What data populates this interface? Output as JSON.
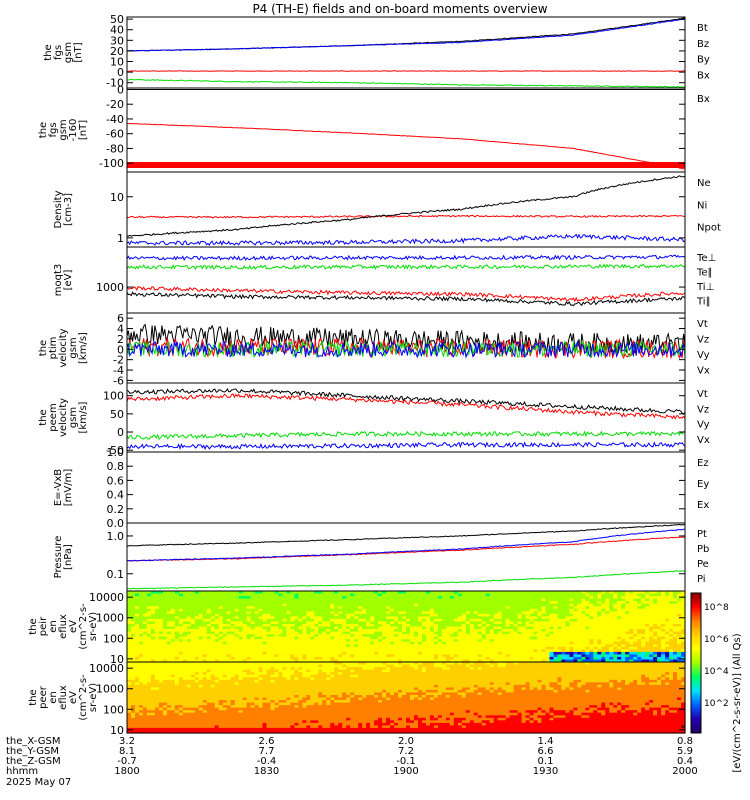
{
  "title": "P4 (TH-E) fields and on-board moments overview",
  "chart_data": [
    {
      "type": "line",
      "ylabel": [
        "the",
        "fgs",
        "gsm",
        "[nT]"
      ],
      "ylim": [
        -15,
        52
      ],
      "yticks": [
        "50",
        "40",
        "30",
        "20",
        "10",
        "0",
        "-10"
      ],
      "ytick_values": [
        50,
        40,
        30,
        20,
        10,
        0,
        -10
      ],
      "x": [
        0,
        0.2,
        0.4,
        0.6,
        0.8,
        1.0
      ],
      "series": [
        {
          "name": "Bt",
          "color": "#000000",
          "values": [
            20,
            22,
            25,
            29,
            36,
            51
          ],
          "noise": 0.3
        },
        {
          "name": "Bz",
          "color": "#ff0000",
          "values": [
            1,
            1,
            1,
            1,
            1,
            1
          ],
          "noise": 0.2
        },
        {
          "name": "By",
          "color": "#00dd00",
          "values": [
            -7,
            -9,
            -10,
            -12,
            -13,
            -14
          ],
          "noise": 0.4
        },
        {
          "name": "Bx",
          "color": "#0000ff",
          "values": [
            20,
            22,
            25,
            28,
            35,
            50
          ],
          "noise": 0.3
        }
      ]
    },
    {
      "type": "line",
      "ylabel": [
        "the",
        "fgs",
        "gsm",
        "-160",
        "[nT]"
      ],
      "ylim": [
        -112,
        2
      ],
      "yticks": [
        "0",
        "-20",
        "-40",
        "-60",
        "-80",
        "-100"
      ],
      "ytick_values": [
        0,
        -20,
        -40,
        -60,
        -80,
        -100
      ],
      "x": [
        0,
        0.2,
        0.4,
        0.6,
        0.8,
        1.0
      ],
      "series": [
        {
          "name": "Bx",
          "color": "#000000",
          "values": [
            0,
            0,
            0,
            0,
            0,
            0
          ],
          "noise": 0.0
        },
        {
          "name": "",
          "color": "#ff0000",
          "values": [
            -46,
            -52,
            -59,
            -67,
            -80,
            -108
          ],
          "noise": 0.3
        }
      ]
    },
    {
      "type": "line",
      "ylog": true,
      "ylabel": [
        "Density",
        "[cm-3]"
      ],
      "ylim": [
        0.6,
        40
      ],
      "yticks": [
        "10",
        "1"
      ],
      "ytick_values": [
        10,
        1
      ],
      "x": [
        0,
        0.2,
        0.4,
        0.6,
        0.8,
        1.0
      ],
      "series": [
        {
          "name": "Ne",
          "color": "#ff0000",
          "values": [
            3.2,
            3.2,
            3.3,
            3.4,
            3.3,
            3.4
          ],
          "noise": 0.02
        },
        {
          "name": "Ni",
          "color": "#000000",
          "values": [
            1.1,
            1.6,
            2.8,
            5,
            10,
            32
          ],
          "noise": 0.02
        },
        {
          "name": "Npot",
          "color": "#0000ff",
          "values": [
            0.75,
            0.75,
            0.78,
            0.85,
            1.1,
            0.9
          ],
          "noise": 0.05
        }
      ]
    },
    {
      "type": "line",
      "ylog": true,
      "ylabel": [
        "moqt3",
        "[eV]"
      ],
      "ylim": [
        200,
        12000
      ],
      "yticks": [
        "1000"
      ],
      "ytick_values": [
        1000
      ],
      "x": [
        0,
        0.2,
        0.4,
        0.6,
        0.8,
        1.0
      ],
      "series": [
        {
          "name": "Te⊥",
          "color": "#0000ff",
          "values": [
            6000,
            6000,
            6200,
            6200,
            6300,
            6500
          ],
          "noise": 0.05
        },
        {
          "name": "Te∥",
          "color": "#00dd00",
          "values": [
            3500,
            3400,
            3500,
            3500,
            3600,
            3700
          ],
          "noise": 0.05
        },
        {
          "name": "Ti⊥",
          "color": "#ff0000",
          "values": [
            950,
            800,
            700,
            650,
            450,
            700
          ],
          "noise": 0.05
        },
        {
          "name": "Ti∥",
          "color": "#000000",
          "values": [
            650,
            550,
            520,
            480,
            350,
            500
          ],
          "noise": 0.05
        }
      ]
    },
    {
      "type": "line",
      "ylabel": [
        "the",
        "ptim",
        "velocity",
        "gsm",
        "[km/s]"
      ],
      "ylim": [
        -6.5,
        7
      ],
      "yticks": [
        "6",
        "4",
        "2",
        "0",
        "-2",
        "-4",
        "-6"
      ],
      "ytick_values": [
        6,
        4,
        2,
        0,
        -2,
        -4,
        -6
      ],
      "x": [
        0,
        0.2,
        0.4,
        0.6,
        0.8,
        1.0
      ],
      "series": [
        {
          "name": "Vt",
          "color": "#000000",
          "values": [
            3,
            2.5,
            2,
            1.6,
            1.2,
            1
          ],
          "noise": 2.0
        },
        {
          "name": "Vz",
          "color": "#ff0000",
          "values": [
            0.5,
            0.4,
            0.3,
            0.2,
            0.1,
            0.1
          ],
          "noise": 1.8
        },
        {
          "name": "Vy",
          "color": "#00dd00",
          "values": [
            0,
            0,
            0,
            0,
            0,
            0
          ],
          "noise": 1.5
        },
        {
          "name": "Vx",
          "color": "#0000ff",
          "values": [
            0,
            0,
            0,
            0,
            0,
            0
          ],
          "noise": 1.5
        }
      ]
    },
    {
      "type": "line",
      "ylabel": [
        "the",
        "peem",
        "velocity",
        "gsm",
        "[km/s]"
      ],
      "ylim": [
        -55,
        135
      ],
      "yticks": [
        "100",
        "50",
        "0",
        "-50"
      ],
      "ytick_values": [
        100,
        50,
        0,
        -50
      ],
      "x": [
        0,
        0.2,
        0.4,
        0.6,
        0.8,
        1.0
      ],
      "series": [
        {
          "name": "Vt",
          "color": "#000000",
          "values": [
            110,
            115,
            100,
            85,
            70,
            55
          ],
          "noise": 6
        },
        {
          "name": "Vz",
          "color": "#ff0000",
          "values": [
            90,
            100,
            90,
            75,
            55,
            40
          ],
          "noise": 6
        },
        {
          "name": "Vy",
          "color": "#00dd00",
          "values": [
            -15,
            -10,
            -5,
            -5,
            -5,
            -5
          ],
          "noise": 6
        },
        {
          "name": "Vx",
          "color": "#0000ff",
          "values": [
            -40,
            -40,
            -38,
            -35,
            -35,
            -35
          ],
          "noise": 6
        }
      ]
    },
    {
      "type": "line",
      "ylabel": [
        "E=-VxB",
        "[mV/m]"
      ],
      "ylim": [
        0,
        1
      ],
      "yticks": [
        "1.0",
        "0.8",
        "0.6",
        "0.4",
        "0.2",
        "0.0"
      ],
      "ytick_values": [
        1.0,
        0.8,
        0.6,
        0.4,
        0.2,
        0.0
      ],
      "x": [],
      "series": [
        {
          "name": "Ez",
          "color": "#ff0000",
          "values": []
        },
        {
          "name": "Ey",
          "color": "#00dd00",
          "values": []
        },
        {
          "name": "Ex",
          "color": "#0000ff",
          "values": []
        }
      ]
    },
    {
      "type": "line",
      "ylog": true,
      "ylabel": [
        "Pressure",
        "[nPa]"
      ],
      "ylim": [
        0.035,
        2.2
      ],
      "yticks": [
        "1.0",
        "0.1"
      ],
      "ytick_values": [
        1.0,
        0.1
      ],
      "x": [
        0,
        0.2,
        0.4,
        0.6,
        0.8,
        1.0
      ],
      "series": [
        {
          "name": "Pt",
          "color": "#000000",
          "values": [
            0.55,
            0.65,
            0.8,
            1.0,
            1.35,
            2.0
          ],
          "noise": 0.01
        },
        {
          "name": "Pb",
          "color": "#ff0000",
          "values": [
            0.22,
            0.25,
            0.32,
            0.42,
            0.6,
            0.95
          ],
          "noise": 0.01
        },
        {
          "name": "Pe",
          "color": "#00dd00",
          "values": [
            0.04,
            0.045,
            0.05,
            0.06,
            0.08,
            0.12
          ],
          "noise": 0.01
        },
        {
          "name": "Pi",
          "color": "#0000ff",
          "values": [
            0.22,
            0.26,
            0.33,
            0.45,
            0.7,
            1.5
          ],
          "noise": 0.01
        }
      ]
    },
    {
      "type": "heatmap",
      "ylog": true,
      "ylabel": [
        "the",
        "peir",
        "en",
        "eflux",
        "eV",
        "(cm^2-s-",
        "sr-eV)"
      ],
      "ylim": [
        7,
        20000
      ],
      "yticks": [
        "10000",
        "1000",
        "100",
        "10"
      ],
      "ytick_values": [
        10000,
        1000,
        100,
        10
      ]
    },
    {
      "type": "heatmap",
      "ylog": true,
      "ylabel": [
        "the",
        "peer",
        "en",
        "eflux",
        "eV",
        "(cm^2-s-",
        "sr-eV)"
      ],
      "ylim": [
        7,
        20000
      ],
      "yticks": [
        "10000",
        "1000",
        "100",
        "10"
      ],
      "ytick_values": [
        10000,
        1000,
        100,
        10
      ]
    }
  ],
  "colorbar": {
    "label": "[eV/(cm^2-s-sr-eV)]  (All Qs)",
    "ticks": [
      "10^8",
      "10^6",
      "10^4",
      "10^2"
    ],
    "colors": [
      "#7f0000",
      "#ff0000",
      "#ff8000",
      "#ffd000",
      "#ffff00",
      "#a0ff00",
      "#00ff60",
      "#00e0ff",
      "#0060ff",
      "#2000b0",
      "#200060"
    ]
  },
  "xaxis": {
    "rows": [
      {
        "label": "the_X-GSM",
        "values": [
          "3.2",
          "2.6",
          "2.0",
          "1.4",
          "0.8"
        ]
      },
      {
        "label": "the_Y-GSM",
        "values": [
          "8.1",
          "7.7",
          "7.2",
          "6.6",
          "5.9"
        ]
      },
      {
        "label": "the_Z-GSM",
        "values": [
          "-0.7",
          "-0.4",
          "-0.1",
          "0.1",
          "0.4"
        ]
      },
      {
        "label": "hhmm",
        "values": [
          "1800",
          "1830",
          "1900",
          "1930",
          "2000"
        ]
      }
    ],
    "date": "2025 May 07"
  }
}
